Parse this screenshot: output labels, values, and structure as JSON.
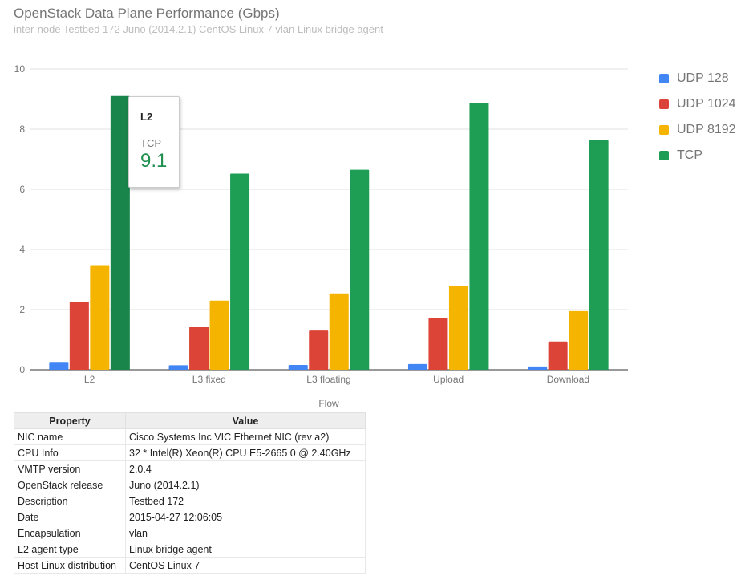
{
  "chart_data": {
    "type": "bar",
    "title": "OpenStack Data Plane Performance (Gbps)",
    "subtitle": "inter-node Testbed 172 Juno (2014.2.1) CentOS Linux 7 vlan Linux bridge agent",
    "xlabel": "Flow",
    "ylabel": "",
    "ylim": [
      0,
      10
    ],
    "yticks": [
      "0",
      "2",
      "4",
      "6",
      "8",
      "10"
    ],
    "categories": [
      "L2",
      "L3 fixed",
      "L3 floating",
      "Upload",
      "Download"
    ],
    "series": [
      {
        "name": "UDP 128",
        "color": "#4285f4",
        "values": [
          0.26,
          0.15,
          0.16,
          0.19,
          0.11
        ]
      },
      {
        "name": "UDP 1024",
        "color": "#db4437",
        "values": [
          2.25,
          1.42,
          1.33,
          1.72,
          0.94
        ]
      },
      {
        "name": "UDP 8192",
        "color": "#f4b400",
        "values": [
          3.48,
          2.3,
          2.54,
          2.8,
          1.95
        ]
      },
      {
        "name": "TCP",
        "color": "#1e9e55",
        "values": [
          9.1,
          6.52,
          6.65,
          8.88,
          7.63
        ]
      }
    ],
    "grid": true,
    "legend": "right",
    "tooltip": {
      "category": "L2",
      "series": "TCP",
      "value": "9.1"
    }
  },
  "table": {
    "headers": [
      "Property",
      "Value"
    ],
    "rows": [
      [
        "NIC name",
        "Cisco Systems Inc VIC Ethernet NIC (rev a2)"
      ],
      [
        "CPU Info",
        "32 * Intel(R) Xeon(R) CPU E5-2665 0 @ 2.40GHz"
      ],
      [
        "VMTP version",
        "2.0.4"
      ],
      [
        "OpenStack release",
        "Juno (2014.2.1)"
      ],
      [
        "Description",
        "Testbed 172"
      ],
      [
        "Date",
        "2015-04-27 12:06:05"
      ],
      [
        "Encapsulation",
        "vlan"
      ],
      [
        "L2 agent type",
        "Linux bridge agent"
      ],
      [
        "Host Linux distribution",
        "CentOS Linux 7"
      ]
    ]
  }
}
